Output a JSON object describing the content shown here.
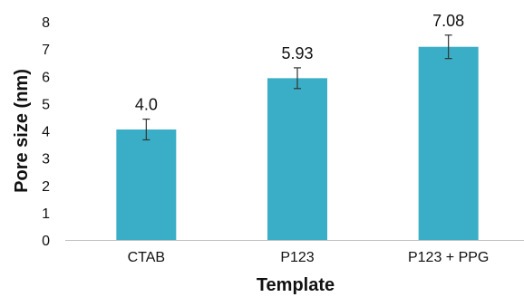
{
  "chart_data": {
    "type": "bar",
    "categories": [
      "CTAB",
      "P123",
      "P123 + PPG"
    ],
    "values": [
      4.05,
      5.93,
      7.08
    ],
    "data_labels": [
      "4.0",
      "5.93",
      "7.08"
    ],
    "error": [
      0.38,
      0.38,
      0.43
    ],
    "xlabel": "Template",
    "ylabel": "Pore size (nm)",
    "ylim": [
      0,
      8
    ],
    "yticks": [
      "0",
      "1",
      "2",
      "3",
      "4",
      "5",
      "6",
      "7",
      "8"
    ],
    "grid": false,
    "legend": "none",
    "colors": {
      "bar": "#3aaec6",
      "error_bar": "#333333",
      "axis": "#bfbfbf"
    }
  }
}
